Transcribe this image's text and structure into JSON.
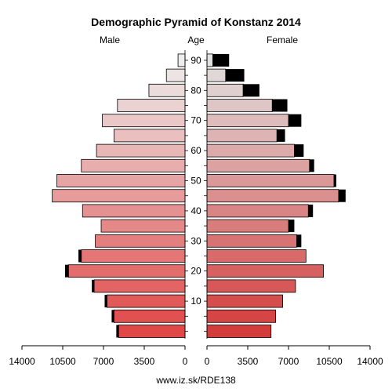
{
  "chart_data": {
    "type": "bar",
    "title": "Demographic Pyramid of Konstanz 2014",
    "male_label": "Male",
    "female_label": "Female",
    "age_label": "Age",
    "footer": "www.iz.sk/RDE138",
    "age_groups": [
      "0-4",
      "5-9",
      "10-14",
      "15-19",
      "20-24",
      "25-29",
      "30-34",
      "35-39",
      "40-44",
      "45-49",
      "50-54",
      "55-59",
      "60-64",
      "65-69",
      "70-74",
      "75-79",
      "80-84",
      "85-89",
      "90+"
    ],
    "age_ticks": [
      10,
      20,
      30,
      40,
      50,
      60,
      70,
      80,
      90
    ],
    "x_ticks_male": [
      14000,
      10500,
      7000,
      3500,
      0
    ],
    "x_ticks_female": [
      0,
      3500,
      7000,
      10500,
      14000
    ],
    "xlim": [
      0,
      14000
    ],
    "series": [
      {
        "name": "Male",
        "values": [
          5700,
          6100,
          6700,
          7800,
          10000,
          8900,
          7700,
          7200,
          8800,
          11400,
          11000,
          8900,
          7600,
          6100,
          7100,
          5800,
          3100,
          1600,
          600
        ],
        "excess": [
          200,
          200,
          200,
          200,
          300,
          250,
          0,
          0,
          0,
          0,
          0,
          0,
          0,
          0,
          0,
          0,
          0,
          0,
          0
        ]
      },
      {
        "name": "Female",
        "values": [
          5500,
          5900,
          6500,
          7600,
          10000,
          8500,
          7700,
          7000,
          8700,
          11300,
          10900,
          8800,
          7500,
          6000,
          7000,
          5600,
          3100,
          1600,
          500
        ],
        "excess": [
          0,
          0,
          0,
          0,
          0,
          0,
          400,
          500,
          400,
          600,
          200,
          400,
          800,
          700,
          1100,
          1300,
          1400,
          1600,
          1400
        ]
      }
    ],
    "colors": {
      "excess": "#000000",
      "outline": "#000000",
      "young": "#e04848",
      "old": "#ededed"
    }
  }
}
